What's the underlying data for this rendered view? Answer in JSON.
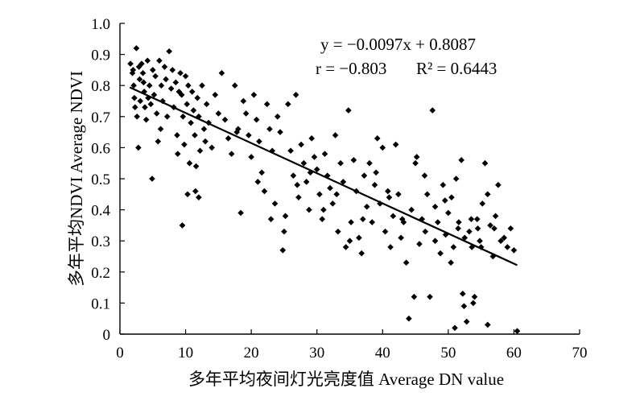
{
  "chart_data": {
    "type": "scatter",
    "xlabel": "多年平均夜间灯光亮度值 Average DN value",
    "ylabel": "多年平均NDVI Average NDVI",
    "xlim": [
      0,
      70
    ],
    "ylim": [
      0,
      1.0
    ],
    "xticks": [
      "0",
      "10",
      "20",
      "30",
      "40",
      "50",
      "60",
      "70"
    ],
    "yticks": [
      "0",
      "0.1",
      "0.2",
      "0.3",
      "0.4",
      "0.5",
      "0.6",
      "0.7",
      "0.8",
      "0.9",
      "1.0"
    ],
    "grid": false,
    "annotations": {
      "equation": "y = −0.0097x + 0.8087",
      "r": "r = −0.803",
      "r2": "R² = 0.6443"
    },
    "trendline": {
      "slope": -0.0097,
      "intercept": 0.8087,
      "x_range": [
        1.5,
        60.5
      ]
    },
    "points": [
      [
        1.6,
        0.87
      ],
      [
        1.9,
        0.84
      ],
      [
        2.0,
        0.85
      ],
      [
        2.1,
        0.8
      ],
      [
        2.2,
        0.76
      ],
      [
        2.3,
        0.73
      ],
      [
        2.5,
        0.92
      ],
      [
        2.6,
        0.7
      ],
      [
        2.8,
        0.6
      ],
      [
        2.9,
        0.86
      ],
      [
        3.0,
        0.82
      ],
      [
        3.1,
        0.75
      ],
      [
        3.3,
        0.87
      ],
      [
        3.5,
        0.84
      ],
      [
        3.6,
        0.81
      ],
      [
        3.7,
        0.78
      ],
      [
        3.8,
        0.73
      ],
      [
        4.0,
        0.69
      ],
      [
        4.2,
        0.88
      ],
      [
        4.3,
        0.76
      ],
      [
        4.5,
        0.8
      ],
      [
        4.7,
        0.74
      ],
      [
        4.9,
        0.5
      ],
      [
        5.0,
        0.85
      ],
      [
        5.2,
        0.77
      ],
      [
        5.4,
        0.83
      ],
      [
        5.6,
        0.71
      ],
      [
        5.8,
        0.62
      ],
      [
        6.0,
        0.88
      ],
      [
        6.3,
        0.8
      ],
      [
        6.5,
        0.75
      ],
      [
        6.8,
        0.86
      ],
      [
        7.0,
        0.82
      ],
      [
        7.2,
        0.7
      ],
      [
        7.5,
        0.91
      ],
      [
        7.8,
        0.79
      ],
      [
        8.0,
        0.85
      ],
      [
        8.2,
        0.73
      ],
      [
        8.5,
        0.81
      ],
      [
        8.7,
        0.64
      ],
      [
        9.0,
        0.78
      ],
      [
        9.2,
        0.84
      ],
      [
        9.4,
        0.77
      ],
      [
        9.6,
        0.7
      ],
      [
        9.8,
        0.61
      ],
      [
        10.0,
        0.83
      ],
      [
        10.2,
        0.74
      ],
      [
        10.4,
        0.8
      ],
      [
        10.6,
        0.55
      ],
      [
        10.8,
        0.68
      ],
      [
        11.0,
        0.78
      ],
      [
        11.2,
        0.72
      ],
      [
        11.4,
        0.64
      ],
      [
        11.6,
        0.54
      ],
      [
        11.8,
        0.76
      ],
      [
        12.0,
        0.7
      ],
      [
        12.2,
        0.59
      ],
      [
        12.5,
        0.8
      ],
      [
        12.8,
        0.66
      ],
      [
        13.0,
        0.62
      ],
      [
        9.5,
        0.35
      ],
      [
        10.3,
        0.45
      ],
      [
        11.5,
        0.46
      ],
      [
        13.2,
        0.74
      ],
      [
        13.5,
        0.68
      ],
      [
        14.0,
        0.6
      ],
      [
        14.5,
        0.77
      ],
      [
        15.0,
        0.71
      ],
      [
        15.5,
        0.84
      ],
      [
        16.0,
        0.69
      ],
      [
        16.5,
        0.63
      ],
      [
        17.0,
        0.58
      ],
      [
        17.5,
        0.8
      ],
      [
        18.0,
        0.66
      ],
      [
        18.4,
        0.39
      ],
      [
        18.8,
        0.75
      ],
      [
        19.2,
        0.71
      ],
      [
        19.6,
        0.64
      ],
      [
        20.0,
        0.57
      ],
      [
        20.4,
        0.77
      ],
      [
        20.8,
        0.69
      ],
      [
        21.2,
        0.62
      ],
      [
        21.6,
        0.52
      ],
      [
        22.0,
        0.46
      ],
      [
        22.4,
        0.74
      ],
      [
        22.8,
        0.66
      ],
      [
        23.2,
        0.59
      ],
      [
        23.6,
        0.42
      ],
      [
        24.0,
        0.7
      ],
      [
        24.4,
        0.65
      ],
      [
        24.8,
        0.27
      ],
      [
        25.2,
        0.38
      ],
      [
        25.6,
        0.74
      ],
      [
        26.0,
        0.59
      ],
      [
        26.4,
        0.51
      ],
      [
        26.8,
        0.77
      ],
      [
        27.2,
        0.44
      ],
      [
        27.6,
        0.61
      ],
      [
        28.0,
        0.55
      ],
      [
        28.4,
        0.49
      ],
      [
        28.8,
        0.4
      ],
      [
        29.2,
        0.63
      ],
      [
        29.6,
        0.57
      ],
      [
        30.0,
        0.53
      ],
      [
        30.4,
        0.45
      ],
      [
        30.8,
        0.37
      ],
      [
        31.2,
        0.58
      ],
      [
        31.6,
        0.51
      ],
      [
        32.0,
        0.47
      ],
      [
        32.4,
        0.42
      ],
      [
        32.8,
        0.64
      ],
      [
        33.2,
        0.33
      ],
      [
        33.6,
        0.55
      ],
      [
        34.0,
        0.49
      ],
      [
        34.4,
        0.28
      ],
      [
        34.8,
        0.72
      ],
      [
        35.2,
        0.36
      ],
      [
        35.6,
        0.56
      ],
      [
        36.0,
        0.46
      ],
      [
        36.4,
        0.31
      ],
      [
        36.8,
        0.26
      ],
      [
        37.2,
        0.51
      ],
      [
        37.6,
        0.41
      ],
      [
        38.0,
        0.55
      ],
      [
        38.4,
        0.36
      ],
      [
        38.8,
        0.48
      ],
      [
        39.2,
        0.63
      ],
      [
        39.6,
        0.42
      ],
      [
        40.0,
        0.6
      ],
      [
        40.4,
        0.33
      ],
      [
        40.8,
        0.46
      ],
      [
        41.2,
        0.28
      ],
      [
        41.6,
        0.38
      ],
      [
        42.0,
        0.61
      ],
      [
        42.4,
        0.45
      ],
      [
        42.8,
        0.31
      ],
      [
        43.2,
        0.36
      ],
      [
        43.6,
        0.23
      ],
      [
        44.0,
        0.05
      ],
      [
        44.4,
        0.4
      ],
      [
        44.8,
        0.12
      ],
      [
        45.2,
        0.57
      ],
      [
        45.6,
        0.29
      ],
      [
        46.0,
        0.37
      ],
      [
        46.4,
        0.51
      ],
      [
        46.8,
        0.45
      ],
      [
        47.2,
        0.12
      ],
      [
        47.6,
        0.72
      ],
      [
        48.0,
        0.41
      ],
      [
        48.4,
        0.36
      ],
      [
        48.8,
        0.26
      ],
      [
        49.2,
        0.48
      ],
      [
        49.6,
        0.32
      ],
      [
        50.0,
        0.39
      ],
      [
        50.4,
        0.23
      ],
      [
        50.8,
        0.28
      ],
      [
        51.2,
        0.5
      ],
      [
        51.6,
        0.36
      ],
      [
        52.0,
        0.56
      ],
      [
        52.4,
        0.09
      ],
      [
        52.8,
        0.04
      ],
      [
        53.2,
        0.33
      ],
      [
        53.6,
        0.28
      ],
      [
        54.0,
        0.12
      ],
      [
        54.4,
        0.37
      ],
      [
        54.8,
        0.3
      ],
      [
        55.2,
        0.42
      ],
      [
        55.6,
        0.55
      ],
      [
        56.0,
        0.03
      ],
      [
        56.4,
        0.35
      ],
      [
        56.8,
        0.25
      ],
      [
        57.2,
        0.38
      ],
      [
        57.6,
        0.48
      ],
      [
        58.0,
        0.3
      ],
      [
        59.0,
        0.28
      ],
      [
        60.0,
        0.27
      ],
      [
        60.5,
        0.01
      ],
      [
        51.0,
        0.02
      ],
      [
        52.2,
        0.13
      ],
      [
        53.8,
        0.1
      ],
      [
        6.2,
        0.66
      ],
      [
        8.8,
        0.58
      ],
      [
        12.0,
        0.44
      ],
      [
        17.8,
        0.65
      ],
      [
        21.0,
        0.49
      ],
      [
        23.0,
        0.37
      ],
      [
        25.0,
        0.33
      ],
      [
        27.0,
        0.48
      ],
      [
        29.0,
        0.52
      ],
      [
        31.0,
        0.4
      ],
      [
        33.0,
        0.45
      ],
      [
        35.0,
        0.3
      ],
      [
        37.0,
        0.37
      ],
      [
        39.0,
        0.52
      ],
      [
        41.0,
        0.44
      ],
      [
        43.0,
        0.37
      ],
      [
        45.0,
        0.55
      ],
      [
        46.5,
        0.33
      ],
      [
        48.0,
        0.3
      ],
      [
        49.5,
        0.43
      ],
      [
        50.5,
        0.44
      ],
      [
        51.5,
        0.34
      ],
      [
        52.5,
        0.31
      ],
      [
        53.5,
        0.37
      ],
      [
        54.5,
        0.34
      ],
      [
        55.0,
        0.28
      ],
      [
        56.0,
        0.45
      ],
      [
        57.0,
        0.34
      ],
      [
        58.5,
        0.31
      ],
      [
        59.5,
        0.34
      ]
    ]
  }
}
